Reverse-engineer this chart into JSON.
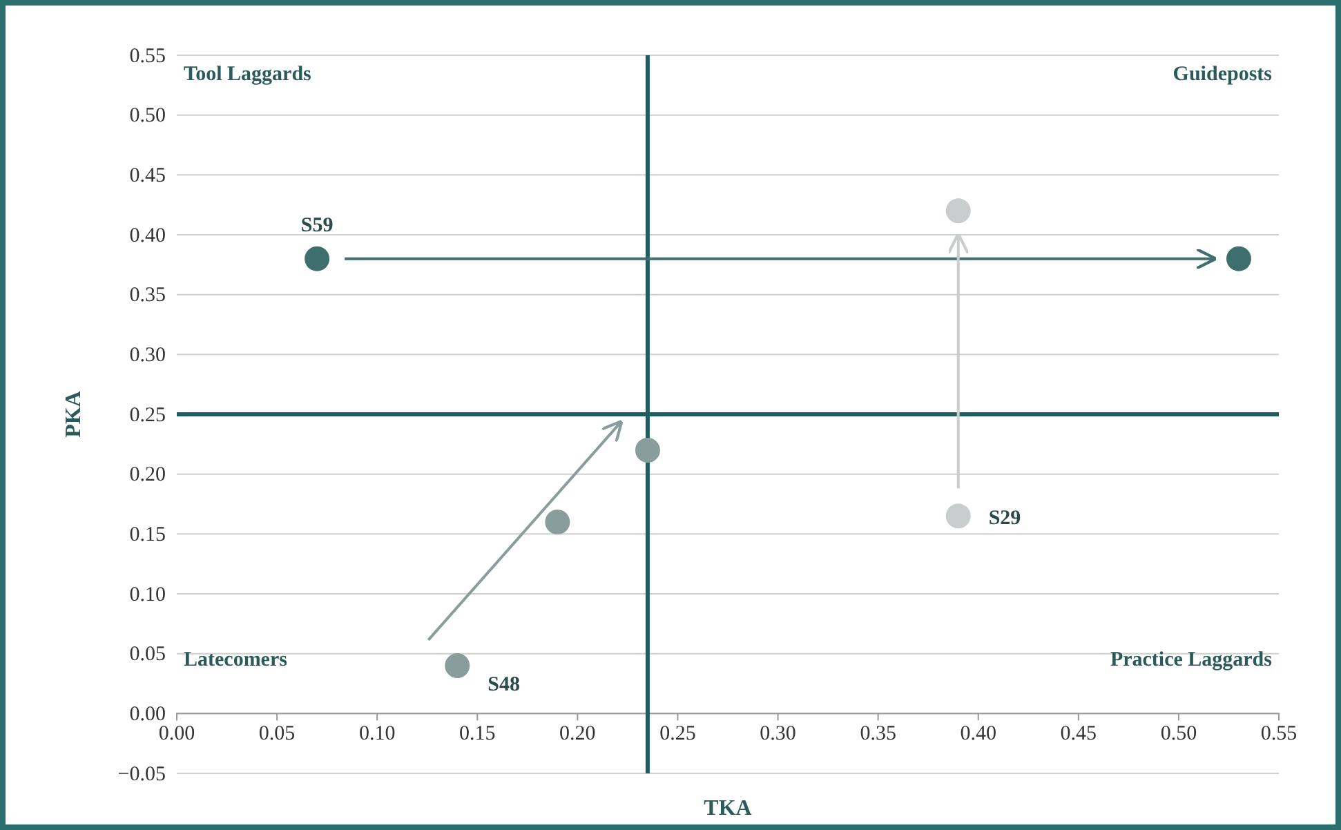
{
  "chart_data": {
    "type": "scatter",
    "xlabel": "TKA",
    "ylabel": "PKA",
    "annotations": [
      "Tool Laggards",
      "Guideposts",
      "Latecomers",
      "Practice Laggards"
    ],
    "series": [
      {
        "name": "S59",
        "color": "#3f6e6e",
        "x": [
          0.07,
          0.53
        ],
        "values": [
          0.38,
          0.38
        ]
      },
      {
        "name": "S29",
        "color": "#c9cdcd",
        "x": [
          0.39,
          0.39
        ],
        "values": [
          0.165,
          0.42
        ]
      },
      {
        "name": "S48",
        "color": "#8a9d9d",
        "x": [
          0.14,
          0.19,
          0.235
        ],
        "values": [
          0.04,
          0.16,
          0.22
        ]
      }
    ],
    "xlim": [
      0,
      0.55
    ],
    "ylim": [
      -0.05,
      0.55
    ],
    "xticks": [
      {
        "value": 0,
        "label": "0.00"
      },
      {
        "value": 0.05,
        "label": "0.05"
      },
      {
        "value": 0.1,
        "label": "0.10"
      },
      {
        "value": 0.15,
        "label": "0.15"
      },
      {
        "value": 0.2,
        "label": "0.20"
      },
      {
        "value": 0.25,
        "label": "0.25"
      },
      {
        "value": 0.3,
        "label": "0.30"
      },
      {
        "value": 0.35,
        "label": "0.35"
      },
      {
        "value": 0.4,
        "label": "0.40"
      },
      {
        "value": 0.45,
        "label": "0.45"
      },
      {
        "value": 0.5,
        "label": "0.50"
      },
      {
        "value": 0.55,
        "label": "0.55"
      }
    ],
    "yticks": [
      {
        "value": -0.05,
        "label": "−0.05"
      },
      {
        "value": 0,
        "label": "0.00"
      },
      {
        "value": 0.05,
        "label": "0.05"
      },
      {
        "value": 0.1,
        "label": "0.10"
      },
      {
        "value": 0.15,
        "label": "0.15"
      },
      {
        "value": 0.2,
        "label": "0.20"
      },
      {
        "value": 0.25,
        "label": "0.25"
      },
      {
        "value": 0.3,
        "label": "0.30"
      },
      {
        "value": 0.35,
        "label": "0.35"
      },
      {
        "value": 0.4,
        "label": "0.40"
      },
      {
        "value": 0.45,
        "label": "0.45"
      },
      {
        "value": 0.5,
        "label": "0.50"
      },
      {
        "value": 0.55,
        "label": "0.55"
      }
    ],
    "ref_lines": [
      {
        "axis": "x",
        "value": 0.235,
        "color": "#1f5e5e"
      },
      {
        "axis": "y",
        "value": 0.25,
        "color": "#1f5e5e"
      }
    ],
    "grid": "y",
    "marker": "circle"
  }
}
